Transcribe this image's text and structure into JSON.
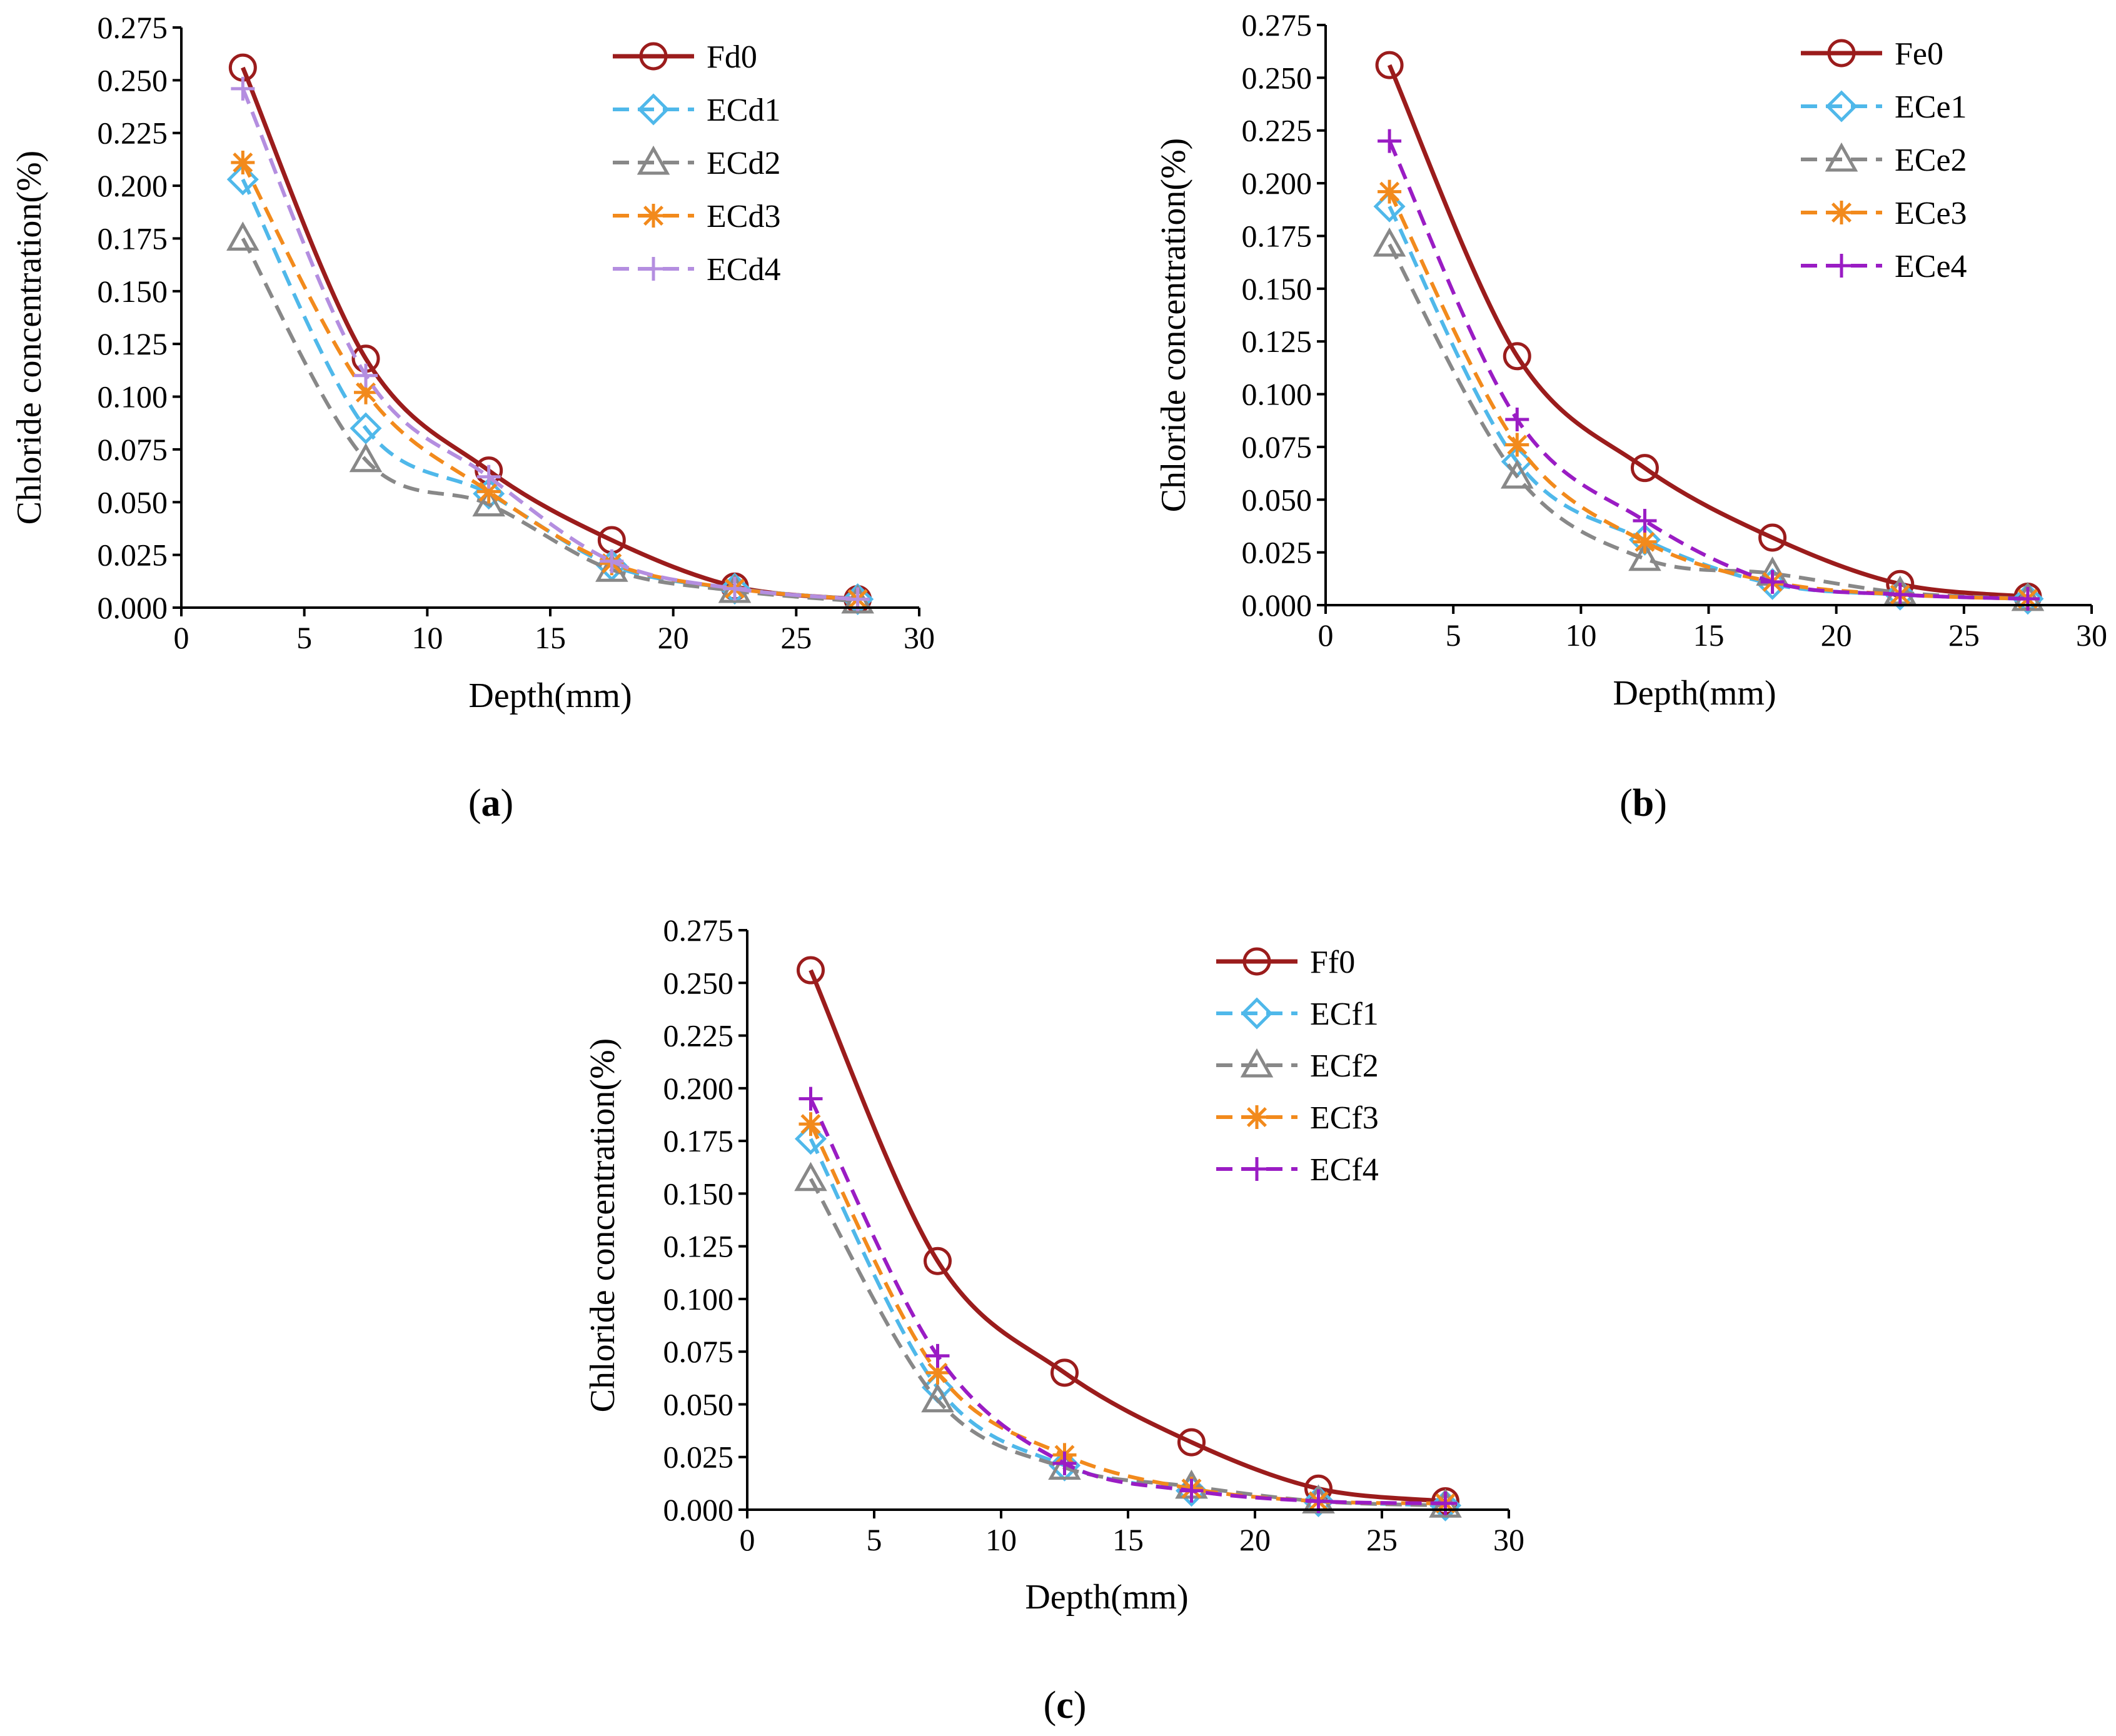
{
  "chart_data": [
    {
      "panel": "a",
      "type": "line",
      "xlabel": "Depth(mm)",
      "ylabel": "Chloride concentration(%)",
      "xlim": [
        0,
        30
      ],
      "ylim": [
        0,
        0.275
      ],
      "xticks": [
        "0",
        "5",
        "10",
        "15",
        "20",
        "25",
        "30"
      ],
      "yticks": [
        "0.000",
        "0.025",
        "0.050",
        "0.075",
        "0.100",
        "0.125",
        "0.150",
        "0.175",
        "0.200",
        "0.225",
        "0.250",
        "0.275"
      ],
      "legend_position": "top-right",
      "x": [
        2.5,
        7.5,
        12.5,
        17.5,
        22.5,
        27.5
      ],
      "series": [
        {
          "name": "Fd0",
          "values": [
            0.256,
            0.118,
            0.065,
            0.032,
            0.01,
            0.004
          ],
          "color": "#9b1c1c",
          "dash": "solid",
          "marker": "circle"
        },
        {
          "name": "ECd1",
          "values": [
            0.203,
            0.085,
            0.054,
            0.02,
            0.009,
            0.004
          ],
          "color": "#4fb8ea",
          "dash": "dashed",
          "marker": "diamond"
        },
        {
          "name": "ECd2",
          "values": [
            0.175,
            0.07,
            0.049,
            0.018,
            0.008,
            0.003
          ],
          "color": "#888888",
          "dash": "dashed",
          "marker": "triangle"
        },
        {
          "name": "ECd3",
          "values": [
            0.211,
            0.102,
            0.055,
            0.021,
            0.009,
            0.004
          ],
          "color": "#f28a1c",
          "dash": "dashed",
          "marker": "star"
        },
        {
          "name": "ECd4",
          "values": [
            0.246,
            0.11,
            0.062,
            0.022,
            0.009,
            0.004
          ],
          "color": "#b48ee0",
          "dash": "dashed",
          "marker": "plus"
        }
      ]
    },
    {
      "panel": "b",
      "type": "line",
      "xlabel": "Depth(mm)",
      "ylabel": "Chloride concentration(%)",
      "xlim": [
        0,
        30
      ],
      "ylim": [
        0,
        0.275
      ],
      "xticks": [
        "0",
        "5",
        "10",
        "15",
        "20",
        "25",
        "30"
      ],
      "yticks": [
        "0.000",
        "0.025",
        "0.050",
        "0.075",
        "0.100",
        "0.125",
        "0.150",
        "0.175",
        "0.200",
        "0.225",
        "0.250",
        "0.275"
      ],
      "legend_position": "top-right",
      "x": [
        2.5,
        7.5,
        12.5,
        17.5,
        22.5,
        27.5
      ],
      "series": [
        {
          "name": "Fe0",
          "values": [
            0.256,
            0.118,
            0.065,
            0.032,
            0.01,
            0.004
          ],
          "color": "#9b1c1c",
          "dash": "solid",
          "marker": "circle"
        },
        {
          "name": "ECe1",
          "values": [
            0.189,
            0.068,
            0.031,
            0.01,
            0.005,
            0.003
          ],
          "color": "#4fb8ea",
          "dash": "dashed",
          "marker": "diamond"
        },
        {
          "name": "ECe2",
          "values": [
            0.171,
            0.061,
            0.022,
            0.015,
            0.006,
            0.003
          ],
          "color": "#888888",
          "dash": "dashed",
          "marker": "triangle"
        },
        {
          "name": "ECe3",
          "values": [
            0.196,
            0.076,
            0.03,
            0.011,
            0.005,
            0.003
          ],
          "color": "#f28a1c",
          "dash": "dashed",
          "marker": "star"
        },
        {
          "name": "ECe4",
          "values": [
            0.22,
            0.088,
            0.04,
            0.011,
            0.005,
            0.003
          ],
          "color": "#9a1cc4",
          "dash": "dashed",
          "marker": "plus"
        }
      ]
    },
    {
      "panel": "c",
      "type": "line",
      "xlabel": "Depth(mm)",
      "ylabel": "Chloride concentration(%)",
      "xlim": [
        0,
        30
      ],
      "ylim": [
        0,
        0.275
      ],
      "xticks": [
        "0",
        "5",
        "10",
        "15",
        "20",
        "25",
        "30"
      ],
      "yticks": [
        "0.000",
        "0.025",
        "0.050",
        "0.075",
        "0.100",
        "0.125",
        "0.150",
        "0.175",
        "0.200",
        "0.225",
        "0.250",
        "0.275"
      ],
      "legend_position": "top-right",
      "x": [
        2.5,
        7.5,
        12.5,
        17.5,
        22.5,
        27.5
      ],
      "series": [
        {
          "name": "Ff0",
          "values": [
            0.256,
            0.118,
            0.065,
            0.032,
            0.01,
            0.004
          ],
          "color": "#9b1c1c",
          "dash": "solid",
          "marker": "circle"
        },
        {
          "name": "ECf1",
          "values": [
            0.176,
            0.058,
            0.021,
            0.009,
            0.004,
            0.002
          ],
          "color": "#4fb8ea",
          "dash": "dashed",
          "marker": "diamond"
        },
        {
          "name": "ECf2",
          "values": [
            0.157,
            0.052,
            0.02,
            0.011,
            0.004,
            0.002
          ],
          "color": "#888888",
          "dash": "dashed",
          "marker": "triangle"
        },
        {
          "name": "ECf3",
          "values": [
            0.183,
            0.065,
            0.026,
            0.01,
            0.004,
            0.003
          ],
          "color": "#f28a1c",
          "dash": "dashed",
          "marker": "star"
        },
        {
          "name": "ECf4",
          "values": [
            0.195,
            0.073,
            0.022,
            0.009,
            0.004,
            0.003
          ],
          "color": "#9a1cc4",
          "dash": "dashed",
          "marker": "plus"
        }
      ]
    }
  ],
  "panel_labels": [
    {
      "open": "(",
      "letter": "a",
      "close": ")"
    },
    {
      "open": "(",
      "letter": "b",
      "close": ")"
    },
    {
      "open": "(",
      "letter": "c",
      "close": ")"
    }
  ]
}
